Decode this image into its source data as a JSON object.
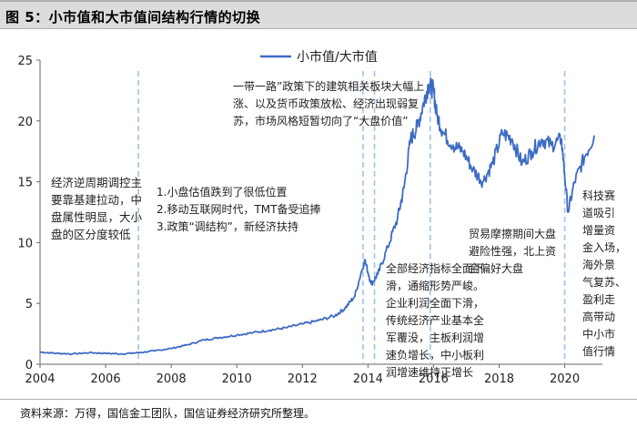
{
  "figure_title": "图 5：小市值和大市值间结构行情的切换",
  "source_note": "资料来源：万得，国信金工团队，国信证券经济研究所整理。",
  "colors": {
    "line": "#3c6bc4",
    "vline": "#9dc3e6",
    "axis": "#666666",
    "text": "#222222",
    "title_bg": "#dcdcdc"
  },
  "chart_data": {
    "type": "line",
    "title": "",
    "xlabel": "",
    "ylabel": "",
    "xlim": [
      2004,
      2021.15
    ],
    "ylim": [
      0,
      25
    ],
    "x_ticks": [
      "2004",
      "2006",
      "2008",
      "2010",
      "2012",
      "2014",
      "2016",
      "2018",
      "2020"
    ],
    "y_ticks": [
      "0",
      "5",
      "10",
      "15",
      "20",
      "25"
    ],
    "grid": false,
    "legend": {
      "position": "top-center"
    },
    "series": [
      {
        "name": "小市值/大市值",
        "x": [
          2004.0,
          2004.5,
          2005.0,
          2005.5,
          2006.0,
          2006.5,
          2007.0,
          2007.5,
          2008.0,
          2008.5,
          2009.0,
          2009.5,
          2010.0,
          2010.5,
          2011.0,
          2011.5,
          2012.0,
          2012.5,
          2013.0,
          2013.3,
          2013.6,
          2013.9,
          2014.1,
          2014.3,
          2014.6,
          2014.9,
          2015.1,
          2015.3,
          2015.5,
          2015.7,
          2015.85,
          2016.0,
          2016.1,
          2016.3,
          2016.6,
          2016.9,
          2017.2,
          2017.5,
          2017.8,
          2018.1,
          2018.4,
          2018.7,
          2019.0,
          2019.3,
          2019.6,
          2019.9,
          2020.1,
          2020.3,
          2020.6,
          2020.9
        ],
        "values": [
          1.0,
          0.9,
          0.85,
          0.95,
          0.9,
          0.85,
          0.95,
          1.1,
          1.3,
          1.6,
          2.0,
          2.2,
          2.4,
          2.6,
          2.8,
          3.0,
          3.3,
          3.6,
          4.0,
          4.6,
          5.6,
          8.6,
          6.6,
          7.4,
          9.6,
          12.0,
          14.5,
          18.5,
          19.5,
          21.5,
          23.0,
          22.5,
          20.5,
          19.0,
          18.0,
          17.5,
          16.0,
          15.0,
          16.5,
          19.0,
          18.5,
          16.5,
          17.5,
          18.5,
          18.0,
          18.5,
          12.5,
          15.0,
          17.0,
          18.8
        ]
      }
    ],
    "vlines": [
      2007.0,
      2013.85,
      2014.2,
      2015.9,
      2020.0
    ],
    "annotations": [
      {
        "lines": [
          "经济逆周期调控主",
          "要靠基建拉动，中",
          "盘属性明显，大小",
          "盘的区分度较低"
        ]
      },
      {
        "lines": [
          "1.小盘估值跌到了很低位置",
          "2.移动互联网时代，TMT备受追捧",
          "3.政策“调结构”，新经济扶持"
        ]
      },
      {
        "lines": [
          "一带一路”政策下的建筑相关板块大幅上",
          "涨、以及货币政策放松、经济出现弱复",
          "苏，市场风格短暂切向了“大盘价值”"
        ]
      },
      {
        "lines": [
          "全部经济指标全面下",
          "滑，通缩形势严峻。",
          "企业利润全面下滑，",
          "传统经济产业基本全",
          "军覆没，主板利润增",
          "速负增长，中小板利",
          "润增速维持正增长"
        ]
      },
      {
        "lines": [
          "贸易摩擦期间大盘",
          "避险性强，北上资",
          "金偏好大盘"
        ]
      },
      {
        "lines": [
          "科技赛",
          "道吸引",
          "增量资",
          "金入场，",
          "海外景",
          "气复苏、",
          "盈利走",
          "高带动",
          "中小市",
          "值行情"
        ]
      }
    ]
  }
}
